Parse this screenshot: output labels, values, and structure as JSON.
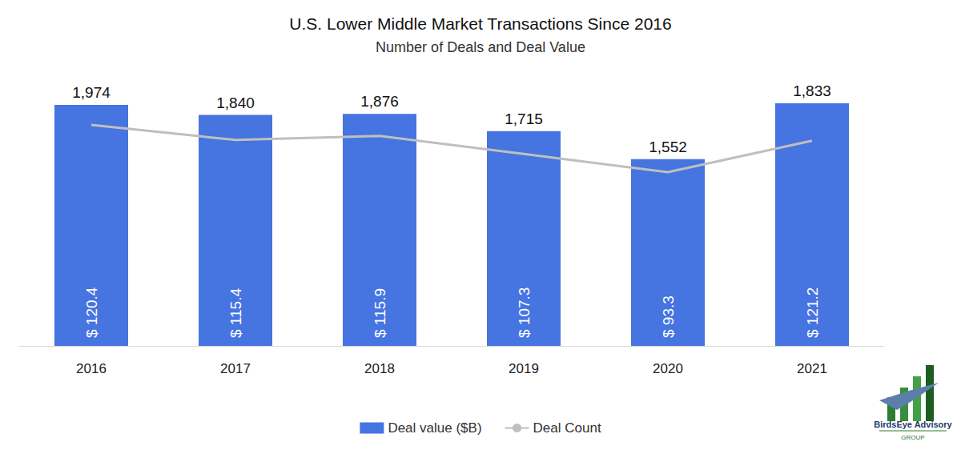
{
  "chart_data": {
    "type": "bar",
    "title": "U.S. Lower Middle Market Transactions Since 2016",
    "subtitle": "Number of Deals and Deal Value",
    "categories": [
      "2016",
      "2017",
      "2018",
      "2019",
      "2020",
      "2021"
    ],
    "series": [
      {
        "name": "Deal value ($B)",
        "type": "bar",
        "color": "#4674e0",
        "values": [
          120.4,
          115.4,
          115.9,
          107.3,
          93.3,
          121.2
        ],
        "value_labels": [
          "$ 120.4",
          "$ 115.4",
          "$ 115.9",
          "$ 107.3",
          "$ 93.3",
          "$ 121.2"
        ]
      },
      {
        "name": "Deal Count",
        "type": "line",
        "axis": "y2",
        "color": "#bfbfbf",
        "values": [
          1974,
          1840,
          1876,
          1715,
          1552,
          1833
        ],
        "value_labels": [
          "1,974",
          "1,840",
          "1,876",
          "1,715",
          "1,552",
          "1,833"
        ]
      }
    ],
    "ylim": [
      0,
      130
    ],
    "y2lim": [
      0,
      2325
    ],
    "grid": false,
    "legend": "bottom",
    "data_labels": true,
    "tick_labels": "x"
  },
  "logo": {
    "name": "BirdsEye Advisory",
    "tagline": "GROUP"
  }
}
